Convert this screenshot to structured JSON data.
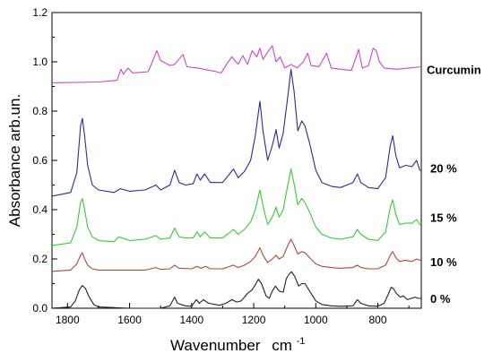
{
  "chart_data": {
    "type": "line",
    "xlabel": "Wavenumber",
    "xlabel_unit": "cm",
    "xlabel_unit_sup": "-1",
    "ylabel": "Absorbance  arb.un.",
    "xlim": [
      1850,
      660
    ],
    "ylim": [
      0.0,
      1.2
    ],
    "x_ticks": [
      1800,
      1600,
      1400,
      1200,
      1000,
      800
    ],
    "y_ticks": [
      "0.0",
      "0.2",
      "0.4",
      "0.6",
      "0.8",
      "1.0",
      "1.2"
    ],
    "x_reversed": true,
    "grid": false,
    "series": [
      {
        "name": "Curcumin",
        "color": "#cc44cc",
        "points": [
          [
            1850,
            0.915
          ],
          [
            1700,
            0.918
          ],
          [
            1640,
            0.925
          ],
          [
            1628,
            0.97
          ],
          [
            1620,
            0.95
          ],
          [
            1605,
            0.975
          ],
          [
            1590,
            0.955
          ],
          [
            1540,
            0.96
          ],
          [
            1512,
            1.045
          ],
          [
            1500,
            1.005
          ],
          [
            1470,
            0.985
          ],
          [
            1455,
            0.99
          ],
          [
            1428,
            1.03
          ],
          [
            1415,
            0.98
          ],
          [
            1380,
            0.975
          ],
          [
            1320,
            0.96
          ],
          [
            1305,
            0.955
          ],
          [
            1285,
            0.995
          ],
          [
            1270,
            1.02
          ],
          [
            1250,
            0.99
          ],
          [
            1235,
            1.025
          ],
          [
            1220,
            0.99
          ],
          [
            1205,
            1.045
          ],
          [
            1190,
            1.02
          ],
          [
            1180,
            1.055
          ],
          [
            1170,
            1.01
          ],
          [
            1155,
            1.04
          ],
          [
            1140,
            1.065
          ],
          [
            1128,
            1.0
          ],
          [
            1115,
            1.02
          ],
          [
            1100,
            0.975
          ],
          [
            1080,
            0.99
          ],
          [
            1060,
            0.975
          ],
          [
            1040,
            1.0
          ],
          [
            1026,
            1.035
          ],
          [
            1015,
            0.985
          ],
          [
            990,
            0.98
          ],
          [
            965,
            1.035
          ],
          [
            950,
            0.975
          ],
          [
            920,
            0.97
          ],
          [
            885,
            0.965
          ],
          [
            862,
            1.05
          ],
          [
            850,
            0.975
          ],
          [
            830,
            0.985
          ],
          [
            815,
            1.055
          ],
          [
            805,
            1.045
          ],
          [
            795,
            1.0
          ],
          [
            780,
            0.975
          ],
          [
            740,
            0.97
          ],
          [
            700,
            0.975
          ],
          [
            660,
            0.98
          ]
        ]
      },
      {
        "name": "20 %",
        "color": "#2b2b9a",
        "points": [
          [
            1850,
            0.455
          ],
          [
            1790,
            0.47
          ],
          [
            1770,
            0.55
          ],
          [
            1758,
            0.74
          ],
          [
            1752,
            0.77
          ],
          [
            1745,
            0.7
          ],
          [
            1735,
            0.58
          ],
          [
            1720,
            0.5
          ],
          [
            1700,
            0.48
          ],
          [
            1650,
            0.47
          ],
          [
            1630,
            0.485
          ],
          [
            1600,
            0.475
          ],
          [
            1550,
            0.48
          ],
          [
            1515,
            0.5
          ],
          [
            1500,
            0.48
          ],
          [
            1470,
            0.5
          ],
          [
            1455,
            0.56
          ],
          [
            1440,
            0.51
          ],
          [
            1420,
            0.5
          ],
          [
            1395,
            0.505
          ],
          [
            1383,
            0.545
          ],
          [
            1372,
            0.52
          ],
          [
            1358,
            0.545
          ],
          [
            1340,
            0.51
          ],
          [
            1300,
            0.51
          ],
          [
            1265,
            0.565
          ],
          [
            1250,
            0.53
          ],
          [
            1230,
            0.555
          ],
          [
            1210,
            0.6
          ],
          [
            1195,
            0.7
          ],
          [
            1180,
            0.84
          ],
          [
            1170,
            0.72
          ],
          [
            1155,
            0.6
          ],
          [
            1140,
            0.66
          ],
          [
            1128,
            0.725
          ],
          [
            1118,
            0.65
          ],
          [
            1105,
            0.71
          ],
          [
            1090,
            0.86
          ],
          [
            1080,
            0.97
          ],
          [
            1070,
            0.88
          ],
          [
            1058,
            0.72
          ],
          [
            1045,
            0.76
          ],
          [
            1035,
            0.74
          ],
          [
            1020,
            0.67
          ],
          [
            1000,
            0.56
          ],
          [
            980,
            0.51
          ],
          [
            950,
            0.495
          ],
          [
            920,
            0.49
          ],
          [
            880,
            0.51
          ],
          [
            866,
            0.545
          ],
          [
            855,
            0.51
          ],
          [
            830,
            0.49
          ],
          [
            800,
            0.485
          ],
          [
            775,
            0.53
          ],
          [
            760,
            0.66
          ],
          [
            752,
            0.7
          ],
          [
            742,
            0.62
          ],
          [
            730,
            0.57
          ],
          [
            710,
            0.58
          ],
          [
            690,
            0.575
          ],
          [
            675,
            0.6
          ],
          [
            665,
            0.56
          ],
          [
            660,
            0.56
          ]
        ]
      },
      {
        "name": "15 %",
        "color": "#33cc33",
        "points": [
          [
            1850,
            0.255
          ],
          [
            1790,
            0.265
          ],
          [
            1770,
            0.33
          ],
          [
            1758,
            0.43
          ],
          [
            1752,
            0.445
          ],
          [
            1745,
            0.4
          ],
          [
            1735,
            0.33
          ],
          [
            1720,
            0.29
          ],
          [
            1700,
            0.275
          ],
          [
            1650,
            0.27
          ],
          [
            1635,
            0.29
          ],
          [
            1600,
            0.275
          ],
          [
            1550,
            0.28
          ],
          [
            1515,
            0.295
          ],
          [
            1500,
            0.28
          ],
          [
            1470,
            0.285
          ],
          [
            1455,
            0.325
          ],
          [
            1440,
            0.29
          ],
          [
            1420,
            0.285
          ],
          [
            1395,
            0.285
          ],
          [
            1383,
            0.31
          ],
          [
            1372,
            0.29
          ],
          [
            1358,
            0.31
          ],
          [
            1340,
            0.285
          ],
          [
            1300,
            0.285
          ],
          [
            1265,
            0.32
          ],
          [
            1250,
            0.3
          ],
          [
            1230,
            0.32
          ],
          [
            1210,
            0.35
          ],
          [
            1195,
            0.4
          ],
          [
            1180,
            0.48
          ],
          [
            1170,
            0.415
          ],
          [
            1155,
            0.34
          ],
          [
            1140,
            0.37
          ],
          [
            1128,
            0.41
          ],
          [
            1118,
            0.37
          ],
          [
            1105,
            0.4
          ],
          [
            1090,
            0.5
          ],
          [
            1080,
            0.565
          ],
          [
            1070,
            0.505
          ],
          [
            1058,
            0.42
          ],
          [
            1045,
            0.445
          ],
          [
            1035,
            0.43
          ],
          [
            1020,
            0.39
          ],
          [
            1000,
            0.33
          ],
          [
            980,
            0.3
          ],
          [
            950,
            0.285
          ],
          [
            920,
            0.28
          ],
          [
            880,
            0.29
          ],
          [
            866,
            0.32
          ],
          [
            855,
            0.3
          ],
          [
            830,
            0.28
          ],
          [
            800,
            0.275
          ],
          [
            775,
            0.31
          ],
          [
            760,
            0.41
          ],
          [
            752,
            0.44
          ],
          [
            742,
            0.38
          ],
          [
            730,
            0.34
          ],
          [
            710,
            0.345
          ],
          [
            690,
            0.345
          ],
          [
            675,
            0.36
          ],
          [
            665,
            0.34
          ],
          [
            660,
            0.345
          ]
        ]
      },
      {
        "name": "10 %",
        "color": "#b34733",
        "points": [
          [
            1850,
            0.15
          ],
          [
            1790,
            0.155
          ],
          [
            1770,
            0.18
          ],
          [
            1758,
            0.215
          ],
          [
            1752,
            0.225
          ],
          [
            1745,
            0.2
          ],
          [
            1735,
            0.175
          ],
          [
            1720,
            0.16
          ],
          [
            1700,
            0.155
          ],
          [
            1600,
            0.155
          ],
          [
            1550,
            0.155
          ],
          [
            1515,
            0.165
          ],
          [
            1500,
            0.158
          ],
          [
            1470,
            0.16
          ],
          [
            1455,
            0.175
          ],
          [
            1440,
            0.162
          ],
          [
            1400,
            0.16
          ],
          [
            1383,
            0.17
          ],
          [
            1370,
            0.162
          ],
          [
            1355,
            0.17
          ],
          [
            1340,
            0.16
          ],
          [
            1300,
            0.16
          ],
          [
            1265,
            0.175
          ],
          [
            1250,
            0.165
          ],
          [
            1230,
            0.175
          ],
          [
            1210,
            0.19
          ],
          [
            1195,
            0.21
          ],
          [
            1180,
            0.245
          ],
          [
            1170,
            0.215
          ],
          [
            1155,
            0.185
          ],
          [
            1140,
            0.2
          ],
          [
            1128,
            0.215
          ],
          [
            1118,
            0.2
          ],
          [
            1105,
            0.21
          ],
          [
            1090,
            0.255
          ],
          [
            1080,
            0.28
          ],
          [
            1070,
            0.255
          ],
          [
            1058,
            0.22
          ],
          [
            1045,
            0.23
          ],
          [
            1035,
            0.225
          ],
          [
            1020,
            0.205
          ],
          [
            1000,
            0.18
          ],
          [
            980,
            0.17
          ],
          [
            950,
            0.165
          ],
          [
            920,
            0.162
          ],
          [
            880,
            0.165
          ],
          [
            866,
            0.175
          ],
          [
            855,
            0.165
          ],
          [
            830,
            0.16
          ],
          [
            800,
            0.16
          ],
          [
            775,
            0.175
          ],
          [
            760,
            0.215
          ],
          [
            752,
            0.23
          ],
          [
            742,
            0.205
          ],
          [
            730,
            0.19
          ],
          [
            710,
            0.195
          ],
          [
            690,
            0.19
          ],
          [
            675,
            0.2
          ],
          [
            665,
            0.195
          ],
          [
            660,
            0.195
          ]
        ]
      },
      {
        "name": "0 %",
        "color": "#222222",
        "points": [
          [
            1850,
            0.0
          ],
          [
            1790,
            0.005
          ],
          [
            1775,
            0.03
          ],
          [
            1762,
            0.075
          ],
          [
            1752,
            0.092
          ],
          [
            1742,
            0.08
          ],
          [
            1730,
            0.045
          ],
          [
            1715,
            0.015
          ],
          [
            1700,
            0.005
          ],
          [
            1600,
            0.0
          ],
          [
            1500,
            0.0
          ],
          [
            1470,
            0.01
          ],
          [
            1455,
            0.045
          ],
          [
            1445,
            0.02
          ],
          [
            1420,
            0.01
          ],
          [
            1400,
            0.008
          ],
          [
            1385,
            0.035
          ],
          [
            1375,
            0.02
          ],
          [
            1362,
            0.035
          ],
          [
            1345,
            0.02
          ],
          [
            1310,
            0.012
          ],
          [
            1290,
            0.02
          ],
          [
            1270,
            0.035
          ],
          [
            1255,
            0.025
          ],
          [
            1240,
            0.03
          ],
          [
            1220,
            0.06
          ],
          [
            1205,
            0.075
          ],
          [
            1195,
            0.095
          ],
          [
            1185,
            0.118
          ],
          [
            1175,
            0.1
          ],
          [
            1160,
            0.05
          ],
          [
            1150,
            0.04
          ],
          [
            1140,
            0.07
          ],
          [
            1130,
            0.09
          ],
          [
            1118,
            0.07
          ],
          [
            1105,
            0.065
          ],
          [
            1095,
            0.12
          ],
          [
            1085,
            0.14
          ],
          [
            1078,
            0.148
          ],
          [
            1068,
            0.13
          ],
          [
            1055,
            0.09
          ],
          [
            1045,
            0.1
          ],
          [
            1035,
            0.1
          ],
          [
            1020,
            0.07
          ],
          [
            1000,
            0.03
          ],
          [
            980,
            0.015
          ],
          [
            950,
            0.01
          ],
          [
            920,
            0.008
          ],
          [
            880,
            0.01
          ],
          [
            866,
            0.035
          ],
          [
            855,
            0.02
          ],
          [
            830,
            0.01
          ],
          [
            800,
            0.008
          ],
          [
            780,
            0.02
          ],
          [
            765,
            0.06
          ],
          [
            757,
            0.085
          ],
          [
            750,
            0.08
          ],
          [
            740,
            0.06
          ],
          [
            728,
            0.045
          ],
          [
            718,
            0.05
          ],
          [
            705,
            0.035
          ],
          [
            692,
            0.04
          ],
          [
            680,
            0.045
          ],
          [
            670,
            0.04
          ],
          [
            660,
            0.04
          ]
        ]
      }
    ],
    "series_label_y": [
      0.97,
      0.57,
      0.37,
      0.19,
      0.04
    ]
  }
}
